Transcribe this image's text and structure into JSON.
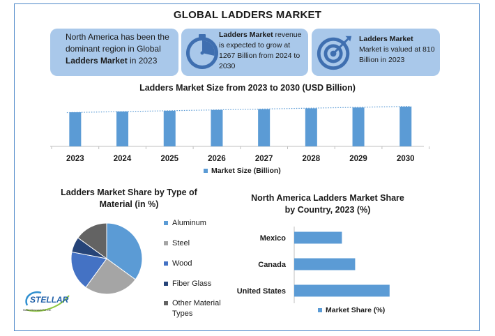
{
  "title": "GLOBAL LADDERS MARKET",
  "cards": {
    "c1": {
      "pre": "North America has been the dominant region in Global ",
      "bold": "Ladders Market",
      "post": " in 2023"
    },
    "c2": {
      "bold": "Ladders Market",
      "post": " revenue is expected to grow at 1267 Billion from 2024 to 2030",
      "icon": "stopwatch-icon"
    },
    "c3": {
      "bold": "Ladders Market",
      "post": " Market is valued at 810 Billion in 2023",
      "icon": "target-icon"
    }
  },
  "colors": {
    "bar": "#5b9bd5",
    "card": "#a9c8ea",
    "aluminum": "#5b9bd5",
    "steel": "#a5a5a5",
    "wood": "#4472c4",
    "fiber_glass": "#264478",
    "other": "#636363"
  },
  "chart_data": [
    {
      "type": "bar",
      "title": "Ladders Market Size from 2023 to 2030 (USD Billion)",
      "categories": [
        "2023",
        "2024",
        "2025",
        "2026",
        "2027",
        "2028",
        "2029",
        "2030"
      ],
      "series": [
        {
          "name": "Market Size (Billion)",
          "values": [
            810,
            828,
            846,
            865,
            884,
            903,
            923,
            943
          ]
        }
      ],
      "ylim": [
        0,
        943
      ],
      "trendline": "dotted linear",
      "legend": "bottom",
      "grid": false
    },
    {
      "type": "pie",
      "title": "Ladders Market Share by Type of Material (in %)",
      "labels": [
        "Aluminum",
        "Steel",
        "Wood",
        "Fiber Glass",
        "Other Material Types"
      ],
      "values": [
        35,
        25,
        18,
        7,
        15
      ],
      "legend": "right"
    },
    {
      "type": "bar",
      "orientation": "horizontal",
      "title": "North America Ladders Market Share by Country, 2023 (%)",
      "categories": [
        "Mexico",
        "Canada",
        "United States"
      ],
      "series": [
        {
          "name": "Market Share (%)",
          "values": [
            18,
            23,
            36
          ]
        }
      ],
      "xlim": [
        0,
        40
      ],
      "legend": "bottom",
      "grid": false
    }
  ],
  "logo": {
    "brand": "STELLAR",
    "tagline": "Market Research Pvt. Ltd."
  }
}
